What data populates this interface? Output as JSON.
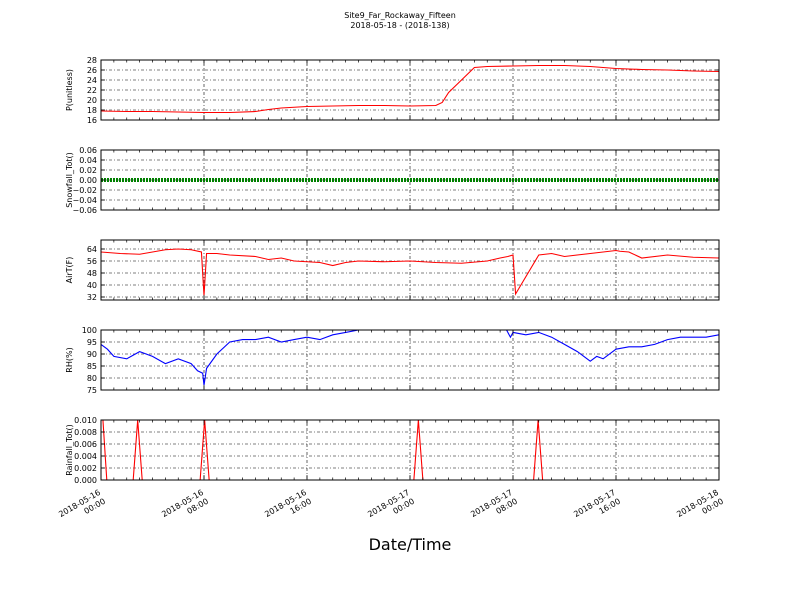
{
  "figure": {
    "title_line1": "Site9_Far_Rockaway_Fifteen",
    "title_line2": "2018-05-18 - (2018-138)",
    "xlabel": "Date/Time"
  },
  "chart_data": [
    {
      "type": "line",
      "ylabel": "P(unitless)",
      "ylim": [
        16,
        28
      ],
      "yticks": [
        16,
        18,
        20,
        22,
        24,
        26,
        28
      ],
      "ytick_labels": [
        "16",
        "18",
        "20",
        "22",
        "24",
        "26",
        "28"
      ],
      "grid": true,
      "series": [
        {
          "color": "#ff0000",
          "x": [
            0,
            2,
            4,
            6,
            8,
            10,
            12,
            13,
            14,
            16,
            18,
            20,
            22,
            24,
            26,
            26.5,
            27,
            28,
            29,
            30,
            32,
            34,
            36,
            38,
            40,
            42,
            44,
            46,
            48
          ],
          "y": [
            17.8,
            17.7,
            17.7,
            17.6,
            17.5,
            17.5,
            17.7,
            18.1,
            18.4,
            18.7,
            18.8,
            18.9,
            18.9,
            18.8,
            18.9,
            19.5,
            21.5,
            24,
            26.5,
            26.7,
            26.8,
            26.9,
            26.9,
            26.7,
            26.3,
            26.1,
            26.0,
            25.8,
            25.7
          ]
        }
      ]
    },
    {
      "type": "line",
      "ylabel": "Snowfall_Tot()",
      "ylim": [
        -0.06,
        0.06
      ],
      "yticks": [
        -0.06,
        -0.04,
        -0.02,
        0.0,
        0.02,
        0.04,
        0.06
      ],
      "ytick_labels": [
        "−0.06",
        "−0.04",
        "−0.02",
        "0.00",
        "0.02",
        "0.04",
        "0.06"
      ],
      "grid": true,
      "series": [
        {
          "color": "#008000",
          "marker": "dot",
          "x": [
            0,
            48
          ],
          "y": [
            0,
            0
          ]
        }
      ]
    },
    {
      "type": "line",
      "ylabel": "AirT(F)",
      "ylim": [
        30,
        70
      ],
      "yticks": [
        32,
        40,
        48,
        56,
        64
      ],
      "ytick_labels": [
        "32",
        "40",
        "48",
        "56",
        "64"
      ],
      "grid": true,
      "series": [
        {
          "color": "#ff0000",
          "x": [
            0,
            1.5,
            3,
            4,
            5,
            6,
            7,
            7.8,
            8,
            8.2,
            9,
            10,
            12,
            13,
            14,
            15,
            17,
            18,
            19,
            20,
            22,
            24,
            26,
            28,
            30,
            31,
            31.6,
            32,
            32.2,
            34,
            35,
            36,
            38,
            40,
            40.3,
            41,
            42,
            44,
            46,
            48
          ],
          "y": [
            62,
            61,
            60.5,
            62,
            63.5,
            64,
            63.5,
            62,
            33,
            61,
            61,
            60,
            59,
            57,
            58,
            56,
            55,
            53,
            55,
            56,
            55.5,
            56,
            55,
            54.5,
            56,
            58,
            59,
            60,
            34,
            60,
            61,
            59,
            61,
            63,
            62.5,
            62,
            58,
            60,
            58.5,
            58
          ]
        }
      ]
    },
    {
      "type": "line",
      "ylabel": "RH(%)",
      "ylim": [
        75,
        100
      ],
      "yticks": [
        75,
        80,
        85,
        90,
        95,
        100
      ],
      "ytick_labels": [
        "75",
        "80",
        "85",
        "90",
        "95",
        "100"
      ],
      "grid": true,
      "series": [
        {
          "color": "#0000ff",
          "x": [
            0,
            0.5,
            1,
            2,
            3,
            4,
            5,
            6,
            7,
            7.5,
            7.9,
            8,
            8.2,
            9,
            10,
            11,
            12,
            13,
            14,
            15,
            16,
            17,
            18,
            19,
            20
          ],
          "y": [
            94,
            92,
            89,
            88,
            91,
            89,
            86,
            88,
            86,
            83,
            82,
            77,
            84,
            90,
            95,
            96,
            96,
            97,
            95,
            96,
            97,
            96,
            98,
            99,
            100
          ]
        },
        {
          "color": "#0000ff",
          "x": [
            31.5,
            31.8,
            32,
            33,
            34,
            35,
            36,
            37,
            38,
            38.5,
            39,
            40,
            41,
            42,
            43,
            44,
            45,
            46,
            47,
            48
          ],
          "y": [
            100,
            97,
            99,
            98,
            99,
            97,
            94,
            91,
            87,
            89,
            88,
            92,
            93,
            93,
            94,
            96,
            97,
            97,
            97,
            98
          ]
        }
      ]
    },
    {
      "type": "line",
      "ylabel": "Rainfall_Tot()",
      "ylim": [
        0,
        0.01
      ],
      "yticks": [
        0,
        0.002,
        0.004,
        0.006,
        0.008,
        0.01
      ],
      "ytick_labels": [
        "0.000",
        "0.002",
        "0.004",
        "0.006",
        "0.008",
        "0.010"
      ],
      "grid": true,
      "series": [
        {
          "color": "#ff0000",
          "x": [
            0,
            0.15,
            0.45,
            2.5,
            2.85,
            3.2,
            7.7,
            8.05,
            8.4,
            24.3,
            24.65,
            25,
            33.6,
            33.95,
            34.3,
            48
          ],
          "y": [
            0.01,
            0.01,
            0,
            0,
            0.01,
            0,
            0,
            0.01,
            0,
            0,
            0.01,
            0,
            0,
            0.01,
            0,
            0
          ]
        }
      ]
    }
  ],
  "x_axis": {
    "unit": "hours since 2018-05-16 00:00",
    "range": [
      0,
      48
    ],
    "ticks": [
      0,
      8,
      16,
      24,
      32,
      40,
      48
    ],
    "tick_labels": [
      [
        "2018-05-16",
        "00:00"
      ],
      [
        "2018-05-16",
        "08:00"
      ],
      [
        "2018-05-16",
        "16:00"
      ],
      [
        "2018-05-17",
        "00:00"
      ],
      [
        "2018-05-17",
        "08:00"
      ],
      [
        "2018-05-17",
        "16:00"
      ],
      [
        "2018-05-18",
        "00:00"
      ]
    ]
  }
}
